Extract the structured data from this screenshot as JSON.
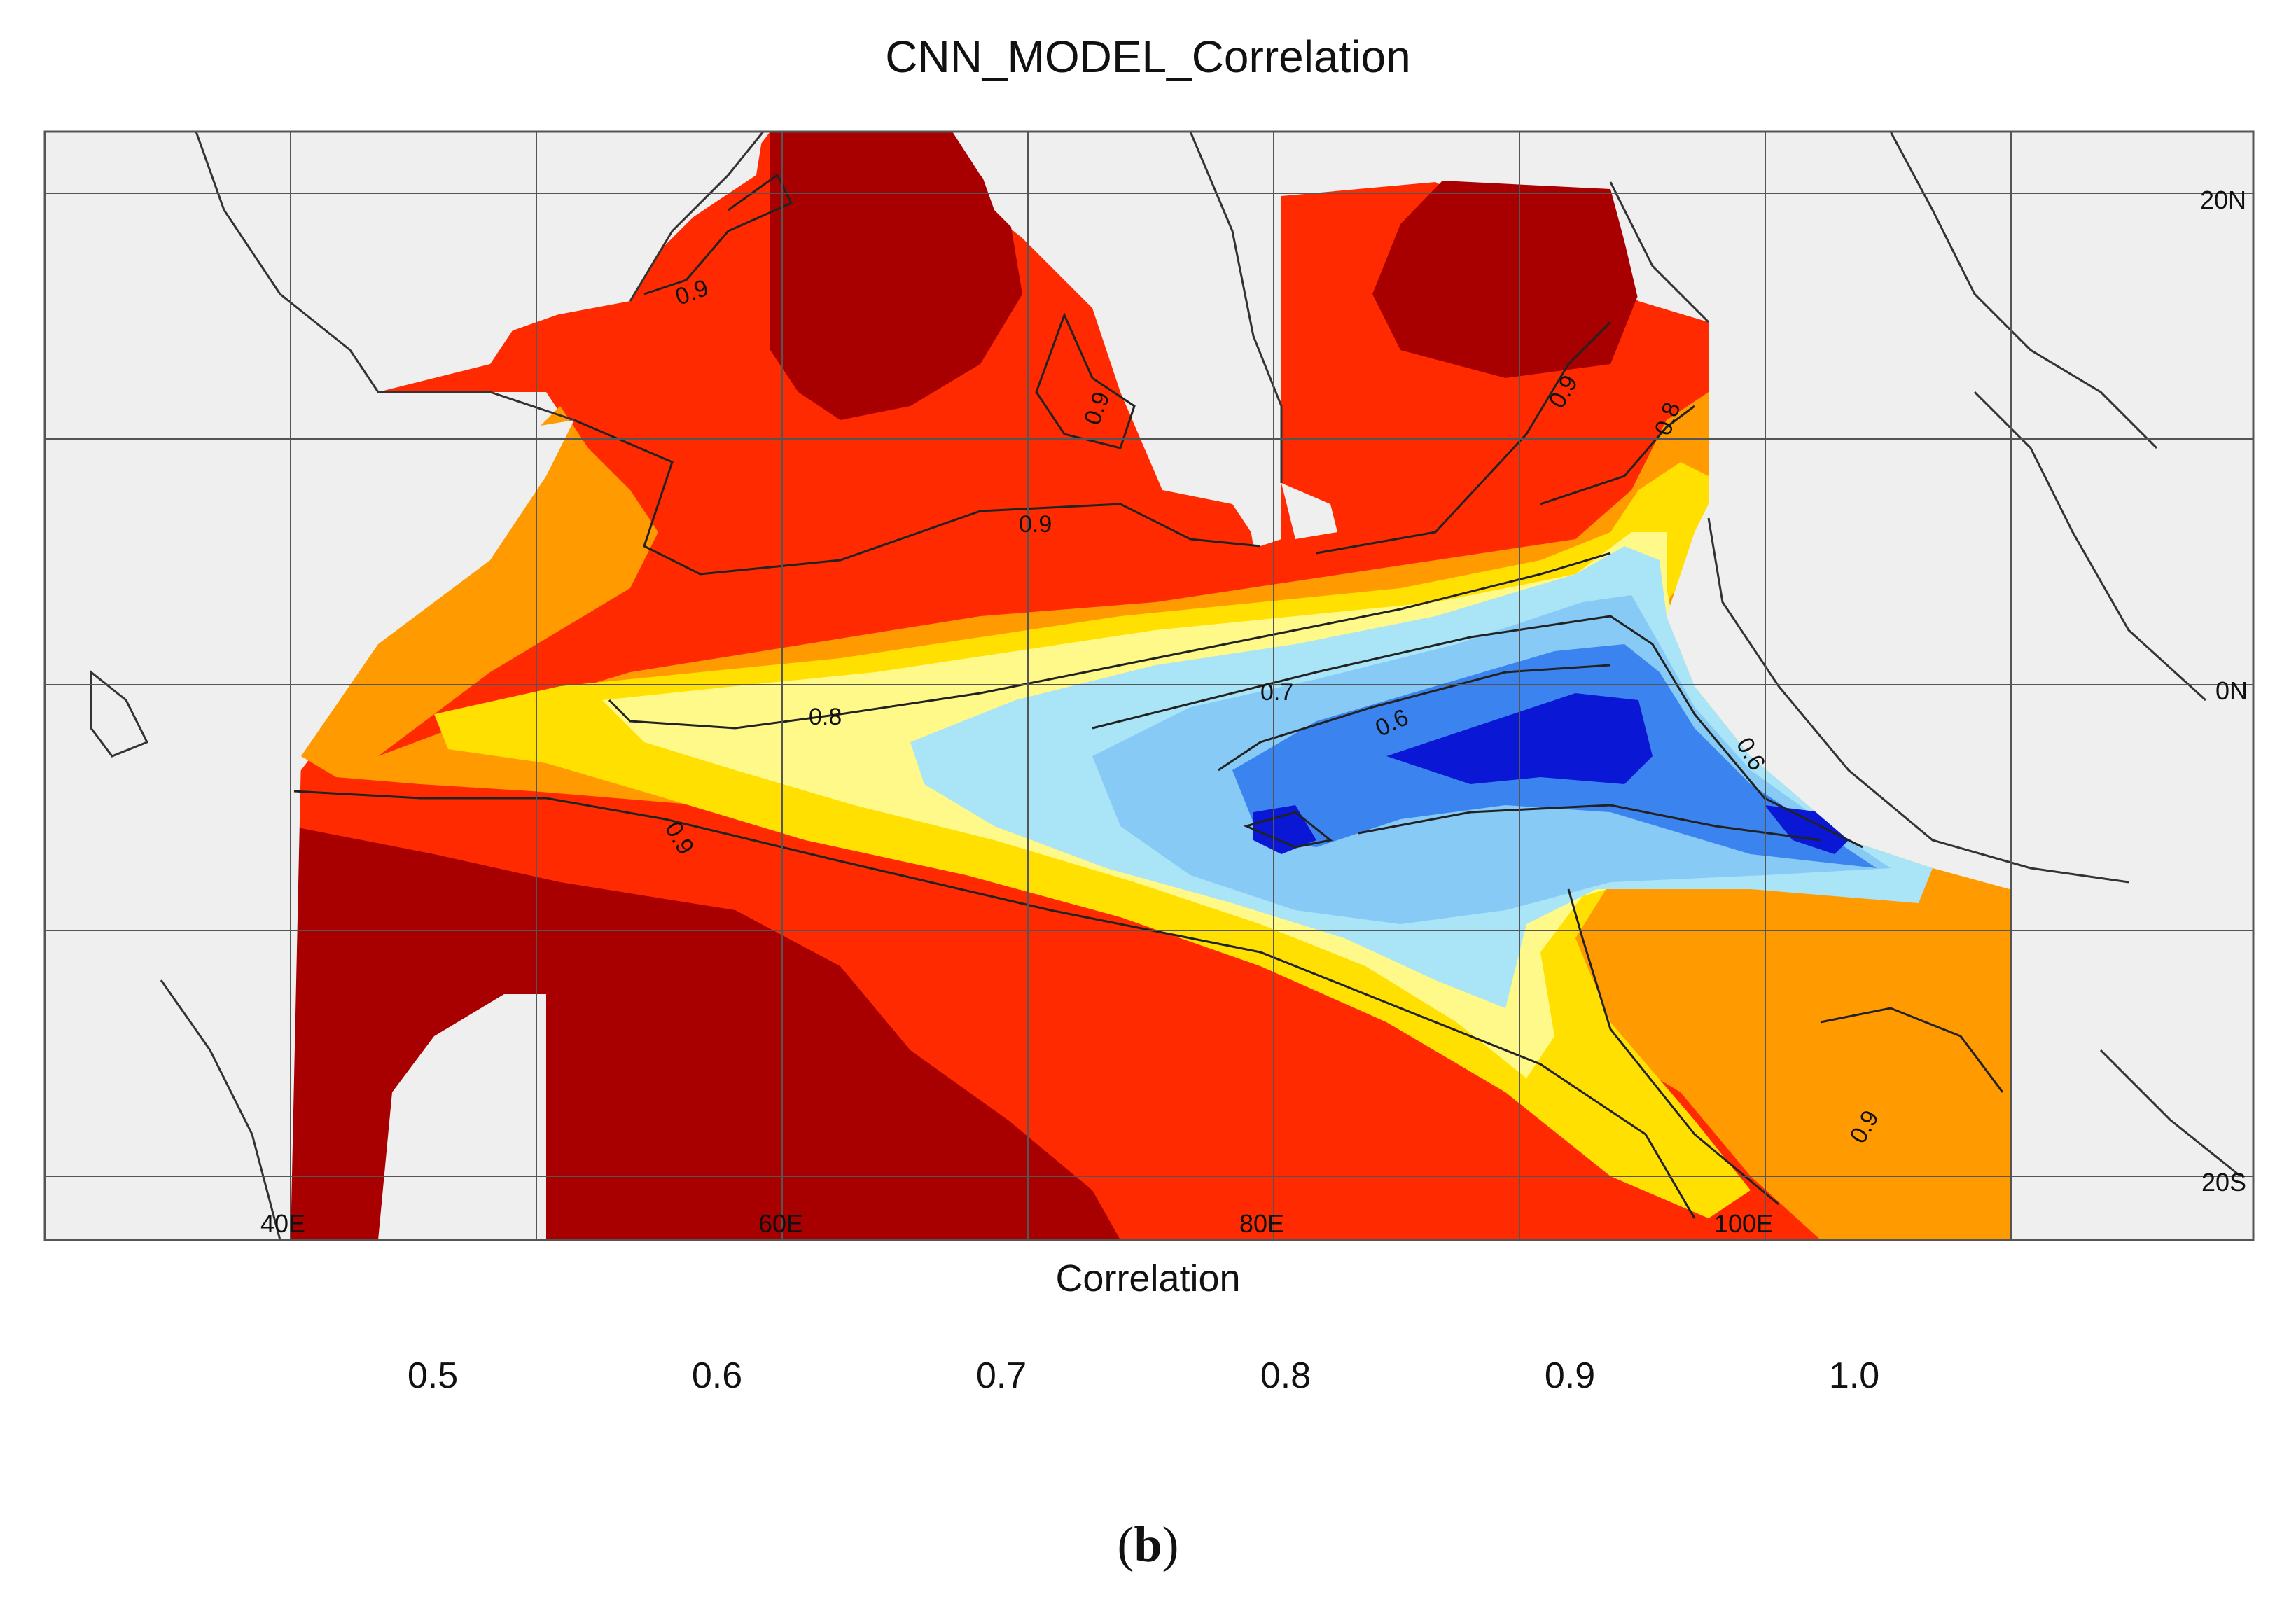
{
  "title": "CNN_MODEL_Correlation",
  "map": {
    "lon_labels": [
      "40E",
      "60E",
      "80E",
      "100E"
    ],
    "lat_labels": [
      "20N",
      "0N",
      "20S"
    ],
    "contour_labels": [
      "0.9",
      "0.9",
      "0.9",
      "0.9",
      "0.8",
      "0.8",
      "0.7",
      "0.6",
      "0.6",
      "0.9",
      "0.9"
    ],
    "land_color": "#efefef",
    "coast_color": "#333333"
  },
  "colorbar": {
    "title": "Correlation",
    "tick_labels": [
      "0.5",
      "0.6",
      "0.7",
      "0.8",
      "0.9",
      "1.0"
    ],
    "colors": [
      "#0a17d4",
      "#1f52e8",
      "#3b83ee",
      "#60acf3",
      "#86caf5",
      "#a9e4f7",
      "#d8f4fa",
      "#fff98a",
      "#ffe400",
      "#ffc000",
      "#ff9a00",
      "#ff6a00",
      "#ff2000",
      "#e00a0a",
      "#a80000"
    ],
    "under_color": "#1a1adc",
    "over_color": "#9b0000"
  },
  "panel_label": "b"
}
